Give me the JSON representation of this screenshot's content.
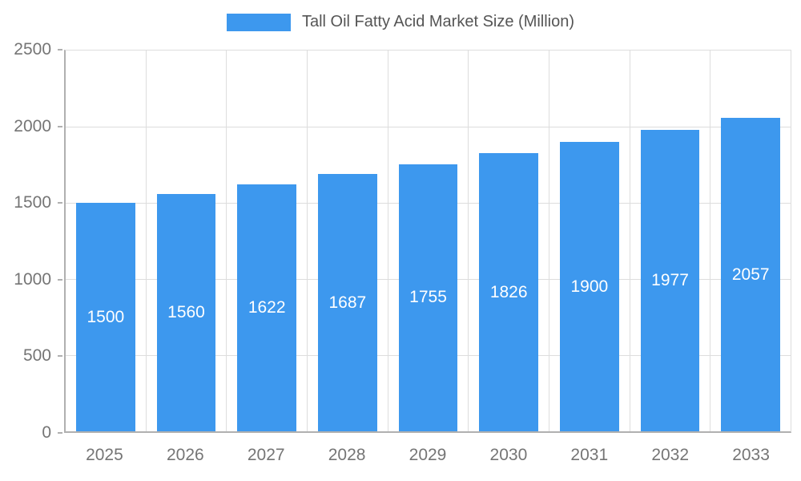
{
  "legend": {
    "label": "Tall Oil Fatty Acid Market Size (Million)"
  },
  "colors": {
    "bar": "#3d98ee",
    "grid": "#dddddd",
    "axis": "#b0b0b0",
    "tick_text": "#757575",
    "legend_text": "#555555",
    "bar_label_text": "#ffffff"
  },
  "chart_data": {
    "type": "bar",
    "title": "Tall Oil Fatty Acid Market Size (Million)",
    "categories": [
      "2025",
      "2026",
      "2027",
      "2028",
      "2029",
      "2030",
      "2031",
      "2032",
      "2033"
    ],
    "values": [
      1500,
      1560,
      1622,
      1687,
      1755,
      1826,
      1900,
      1977,
      2057
    ],
    "xlabel": "",
    "ylabel": "",
    "ylim": [
      0,
      2500
    ],
    "yticks": [
      0,
      500,
      1000,
      1500,
      2000,
      2500
    ],
    "grid": true,
    "legend_position": "top",
    "value_labels": "inside-center"
  }
}
